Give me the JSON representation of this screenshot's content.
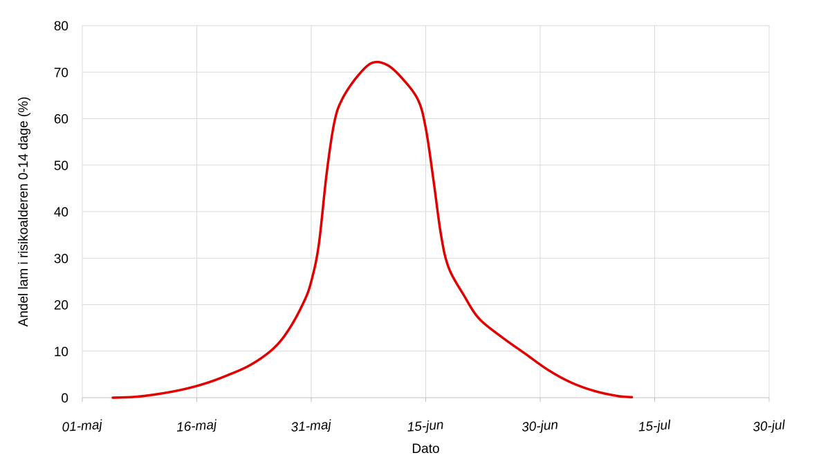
{
  "chart_data": {
    "type": "line",
    "xlabel": "Dato",
    "ylabel": "Andel lam i risikoalderen 0-14 dage (%)",
    "x_ticks": [
      "01-maj",
      "16-maj",
      "31-maj",
      "15-jun",
      "30-jun",
      "15-jul",
      "30-jul"
    ],
    "x_range": [
      "01-maj",
      "30-jul"
    ],
    "ylim": [
      0,
      80
    ],
    "y_ticks": [
      0,
      10,
      20,
      30,
      40,
      50,
      60,
      70,
      80
    ],
    "grid": true,
    "legend": "none",
    "series": [
      {
        "color": "#e00000",
        "points": [
          [
            "05-maj",
            0.0
          ],
          [
            "08-maj",
            0.2
          ],
          [
            "11-maj",
            0.8
          ],
          [
            "14-maj",
            1.7
          ],
          [
            "17-maj",
            3.0
          ],
          [
            "20-maj",
            4.8
          ],
          [
            "23-maj",
            7.0
          ],
          [
            "26-maj",
            10.5
          ],
          [
            "28-maj",
            14.5
          ],
          [
            "30-maj",
            20.5
          ],
          [
            "31-maj",
            25.0
          ],
          [
            "01-jun",
            33.0
          ],
          [
            "02-jun",
            48.0
          ],
          [
            "03-jun",
            59.0
          ],
          [
            "04-jun",
            64.0
          ],
          [
            "06-jun",
            69.0
          ],
          [
            "08-jun",
            72.0
          ],
          [
            "10-jun",
            71.5
          ],
          [
            "12-jun",
            68.5
          ],
          [
            "14-jun",
            64.0
          ],
          [
            "15-jun",
            58.0
          ],
          [
            "16-jun",
            47.0
          ],
          [
            "17-jun",
            35.0
          ],
          [
            "18-jun",
            28.0
          ],
          [
            "20-jun",
            22.0
          ],
          [
            "22-jun",
            17.0
          ],
          [
            "25-jun",
            13.0
          ],
          [
            "28-jun",
            9.5
          ],
          [
            "01-jul",
            6.0
          ],
          [
            "04-jul",
            3.3
          ],
          [
            "07-jul",
            1.5
          ],
          [
            "10-jul",
            0.4
          ],
          [
            "12-jul",
            0.1
          ]
        ]
      }
    ]
  }
}
